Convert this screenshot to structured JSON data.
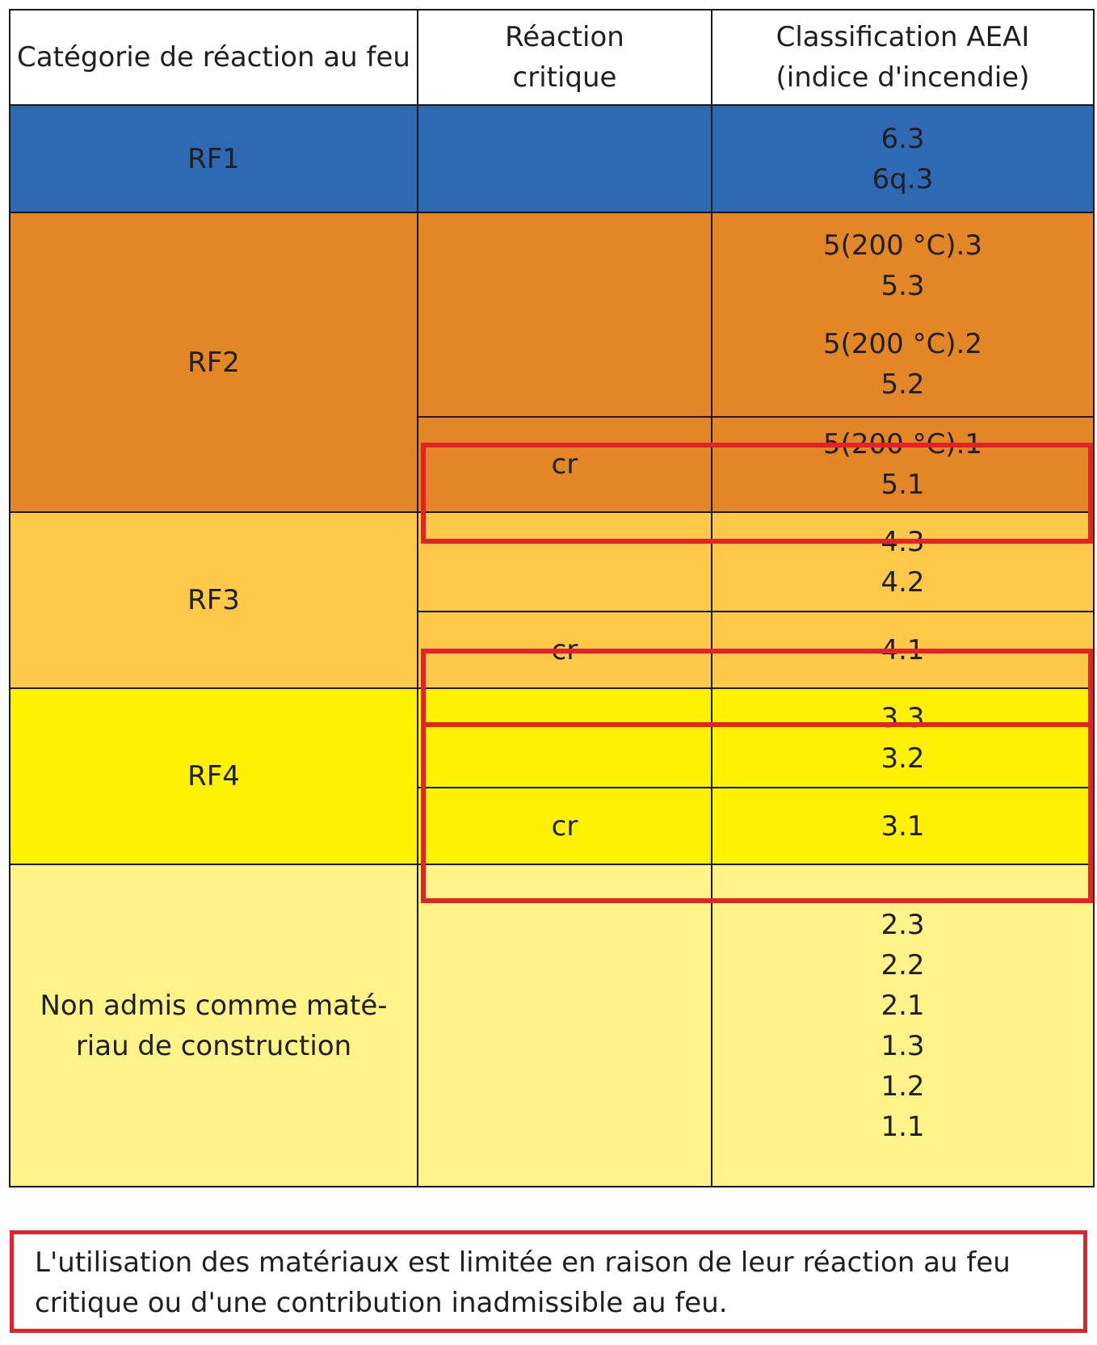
{
  "header": {
    "col1": "Catégorie de réaction au feu",
    "col2_line1": "Réaction",
    "col2_line2": "critique",
    "col3_line1": "Classification AEAI",
    "col3_line2": "(indice d'incendie)"
  },
  "colors": {
    "rf1": "#3069b3",
    "rf2": "#e38626",
    "rf3": "#fec848",
    "rf4": "#fff200",
    "non_admis": "#fef388",
    "highlight": "#e52229"
  },
  "rows": {
    "rf1": {
      "category": "RF1",
      "values": [
        "6.3",
        "6q.3"
      ]
    },
    "rf2": {
      "category": "RF2",
      "group_a": [
        "5(200 °C).3",
        "5.3"
      ],
      "group_b": [
        "5(200 °C).2",
        "5.2"
      ],
      "critical_label": "cr",
      "critical_values": [
        "5(200 °C).1",
        "5.1"
      ]
    },
    "rf3": {
      "category": "RF3",
      "values": [
        "4.3",
        "4.2"
      ],
      "critical_label": "cr",
      "critical_value": "4.1"
    },
    "rf4": {
      "category": "RF4",
      "values": [
        "3.3",
        "3.2"
      ],
      "critical_label": "cr",
      "critical_value": "3.1"
    },
    "non_admis": {
      "category_line1": "Non admis comme maté-",
      "category_line2": "riau de construction",
      "values": [
        "2.3",
        "2.2",
        "2.1",
        "1.3",
        "1.2",
        "1.1"
      ]
    }
  },
  "note": {
    "line1": "L'utilisation des matériaux est limitée en raison de leur réaction au feu",
    "line2": "critique ou d'une contribution inadmissible au feu."
  }
}
